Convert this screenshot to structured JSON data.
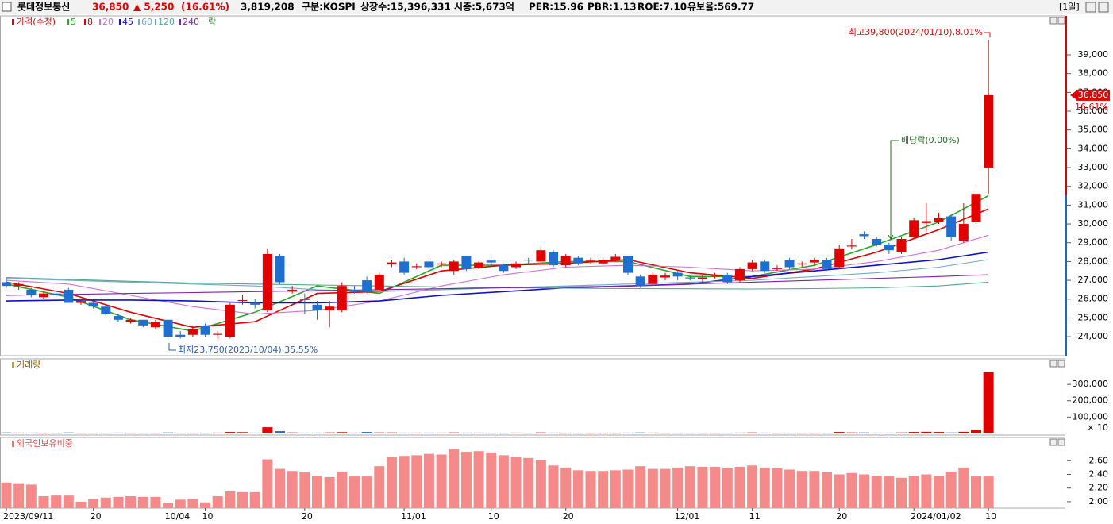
{
  "header": {
    "name": "롯데정보통신",
    "price": "36,850",
    "change": "▲ 5,250",
    "rate": "(16.61%)",
    "volume": "3,819,208",
    "market": "구분:KOSPI",
    "shares": "상장수:15,396,331",
    "cap": "시총:5,673억",
    "per": "PER:15.96",
    "pbr": "PBR:1.13",
    "roe": "ROE:7.10",
    "reserve": "유보율:569.77",
    "period": "[1일]"
  },
  "chart_data": [
    {
      "type": "candlestick",
      "legend_title": "가격(수정)",
      "legend_extra": "락",
      "up_color": "#e00000",
      "down_color": "#1e6fd0",
      "price_label": "36,850",
      "change_label": "16.61%",
      "annotations": {
        "high": "최고39,800(2024/01/10),8.01%",
        "low": "최저23,750(2023/10/04),35.55%",
        "ex_dividend": "배당락(0.00%)"
      },
      "ylim": [
        22990,
        41070
      ],
      "yticks": [
        {
          "value": 24000,
          "label": "24,000"
        },
        {
          "value": 25000,
          "label": "25,000"
        },
        {
          "value": 26000,
          "label": "26,000"
        },
        {
          "value": 27000,
          "label": "27,000"
        },
        {
          "value": 28000,
          "label": "28,000"
        },
        {
          "value": 29000,
          "label": "29,000"
        },
        {
          "value": 30000,
          "label": "30,000"
        },
        {
          "value": 31000,
          "label": "31,000"
        },
        {
          "value": 32000,
          "label": "32,000"
        },
        {
          "value": 33000,
          "label": "33,000"
        },
        {
          "value": 34000,
          "label": "34,000"
        },
        {
          "value": 35000,
          "label": "35,000"
        },
        {
          "value": 36000,
          "label": "36,000"
        },
        {
          "value": 37000,
          "label": "37,000"
        },
        {
          "value": 38000,
          "label": "38,000"
        },
        {
          "value": 39000,
          "label": "39,000"
        }
      ],
      "open": [
        26900,
        26700,
        26500,
        26100,
        26300,
        26500,
        25800,
        25800,
        25600,
        25100,
        24800,
        24900,
        24500,
        24900,
        24100,
        24100,
        24600,
        24100,
        24000,
        25900,
        25800,
        25400,
        28300,
        26400,
        26000,
        25700,
        25400,
        25400,
        26500,
        27000,
        26500,
        27850,
        28000,
        27700,
        28000,
        27850,
        27500,
        28300,
        27700,
        28050,
        27800,
        27700,
        28100,
        28000,
        28500,
        27800,
        28200,
        28000,
        27900,
        28100,
        28300,
        27200,
        26800,
        27150,
        27400,
        27150,
        27050,
        27200,
        27300,
        27000,
        27600,
        28000,
        27600,
        28100,
        27850,
        27950,
        28100,
        27700,
        28800,
        29450,
        29200,
        28900,
        28500,
        29300,
        30050,
        30100,
        30400,
        29100,
        30100,
        33000
      ],
      "close": [
        26700,
        26800,
        26200,
        26300,
        26200,
        25800,
        25900,
        25600,
        25200,
        24900,
        24900,
        24600,
        24800,
        24000,
        24000,
        24400,
        24100,
        24150,
        25700,
        25950,
        25700,
        28400,
        26900,
        26500,
        25950,
        25400,
        25600,
        26700,
        26400,
        26400,
        27300,
        27950,
        27400,
        27750,
        27700,
        27900,
        28000,
        27600,
        27950,
        27950,
        27500,
        27900,
        28050,
        28600,
        27800,
        28300,
        27900,
        28050,
        28100,
        28250,
        27400,
        26700,
        27300,
        27250,
        27200,
        27100,
        27150,
        27250,
        26900,
        27600,
        27950,
        27500,
        27650,
        27700,
        27900,
        28100,
        27600,
        28700,
        28850,
        29350,
        28900,
        28600,
        29200,
        30200,
        30150,
        30300,
        29300,
        30000,
        31600,
        36850
      ],
      "high": [
        27100,
        26900,
        26600,
        26400,
        26500,
        26600,
        26000,
        25900,
        25700,
        25200,
        25000,
        24900,
        24900,
        24900,
        24300,
        24600,
        24700,
        24300,
        25800,
        26200,
        26000,
        28700,
        28400,
        26700,
        26300,
        25900,
        25900,
        26900,
        26700,
        27200,
        27400,
        28100,
        28200,
        27900,
        28100,
        28000,
        28100,
        28300,
        28000,
        28100,
        27900,
        28000,
        28200,
        28800,
        28600,
        28400,
        28300,
        28200,
        28200,
        28400,
        28300,
        27300,
        27400,
        27400,
        27500,
        27300,
        27300,
        27400,
        27400,
        27700,
        28100,
        28100,
        27800,
        28200,
        28000,
        28200,
        28200,
        28900,
        29200,
        29600,
        29300,
        29000,
        29300,
        30300,
        31100,
        30600,
        30500,
        31100,
        32100,
        39800
      ],
      "low": [
        26600,
        26500,
        26100,
        26000,
        26100,
        25800,
        25700,
        25500,
        25100,
        24800,
        24700,
        24500,
        24400,
        23750,
        23900,
        24000,
        24000,
        23900,
        23900,
        25700,
        25500,
        25300,
        26800,
        26300,
        25200,
        24900,
        24500,
        25300,
        26300,
        26300,
        26400,
        27700,
        27300,
        27600,
        27600,
        27700,
        27300,
        27500,
        27600,
        27800,
        27400,
        27600,
        27900,
        27900,
        27700,
        27700,
        27800,
        27900,
        27800,
        28000,
        27300,
        26600,
        26700,
        27000,
        27000,
        27000,
        26900,
        27100,
        26800,
        26900,
        27500,
        27400,
        27500,
        27600,
        27700,
        27800,
        27500,
        27600,
        28700,
        29200,
        28800,
        28400,
        28400,
        29200,
        29600,
        30000,
        29100,
        29000,
        30000,
        31600
      ],
      "lines": [
        {
          "name": "5",
          "color": "#28a828",
          "x": [
            0,
            5,
            10,
            15,
            20,
            25,
            30,
            35,
            40,
            45,
            50,
            55,
            60,
            65,
            70,
            75,
            79
          ],
          "values": [
            26800,
            26100,
            24900,
            24300,
            25300,
            26700,
            26300,
            27800,
            27800,
            28000,
            28000,
            27200,
            27200,
            27800,
            28900,
            30100,
            31500
          ]
        },
        {
          "name": "8",
          "color": "#e00000",
          "x": [
            0,
            5,
            10,
            15,
            20,
            25,
            30,
            35,
            40,
            45,
            50,
            55,
            60,
            65,
            70,
            75,
            79
          ],
          "values": [
            26900,
            26300,
            25300,
            24500,
            24800,
            26300,
            26400,
            27500,
            27800,
            27900,
            28100,
            27400,
            27100,
            27600,
            28500,
            29700,
            30800
          ]
        },
        {
          "name": "20",
          "color": "#d070d8",
          "x": [
            0,
            5,
            10,
            15,
            20,
            25,
            30,
            35,
            40,
            45,
            50,
            55,
            60,
            65,
            70,
            75,
            79
          ],
          "values": [
            27000,
            26800,
            26200,
            25600,
            25200,
            25400,
            25900,
            26700,
            27300,
            27700,
            27800,
            27700,
            27500,
            27600,
            28000,
            28600,
            29400
          ]
        },
        {
          "name": "45",
          "color": "#1010c8",
          "x": [
            0,
            5,
            10,
            15,
            20,
            25,
            30,
            35,
            40,
            45,
            50,
            55,
            60,
            65,
            70,
            75,
            79
          ],
          "values": [
            25900,
            25950,
            25950,
            25900,
            25800,
            25800,
            25900,
            26200,
            26400,
            26600,
            26700,
            26800,
            27200,
            27500,
            27800,
            28100,
            28500
          ]
        },
        {
          "name": "60",
          "color": "#70a8c8",
          "x": [
            0,
            5,
            10,
            15,
            20,
            25,
            30,
            35,
            40,
            45,
            50,
            55,
            60,
            65,
            70,
            75,
            79
          ],
          "values": [
            27100,
            27000,
            26900,
            26800,
            26700,
            26500,
            26400,
            26500,
            26600,
            26700,
            26800,
            26900,
            27000,
            27200,
            27400,
            27700,
            28100
          ]
        },
        {
          "name": "120",
          "color": "#50a890",
          "x": [
            0,
            5,
            10,
            15,
            20,
            25,
            30,
            35,
            40,
            45,
            50,
            55,
            60,
            65,
            70,
            75,
            79
          ],
          "values": [
            27150,
            27050,
            26950,
            26850,
            26800,
            26750,
            26700,
            26650,
            26600,
            26580,
            26560,
            26550,
            26540,
            26560,
            26600,
            26700,
            26900
          ]
        },
        {
          "name": "240",
          "color": "#8020b0",
          "x": [
            0,
            5,
            10,
            15,
            20,
            25,
            30,
            35,
            40,
            45,
            50,
            55,
            60,
            65,
            70,
            75,
            79
          ],
          "values": [
            26200,
            26250,
            26300,
            26350,
            26400,
            26450,
            26500,
            26550,
            26600,
            26650,
            26700,
            26800,
            26900,
            27000,
            27100,
            27200,
            27300
          ]
        }
      ]
    },
    {
      "type": "bar",
      "legend_title": "거래량",
      "unit_label": "× 10",
      "ylim": [
        -10000,
        456000
      ],
      "yticks": [
        {
          "value": 100000,
          "label": "100,000"
        },
        {
          "value": 200000,
          "label": "200,000"
        },
        {
          "value": 300000,
          "label": "300,000"
        }
      ],
      "values": [
        6000,
        5000,
        5000,
        4000,
        4000,
        6000,
        4000,
        4000,
        4000,
        5000,
        4000,
        4000,
        4000,
        6000,
        4000,
        4000,
        4000,
        5000,
        9000,
        8000,
        5000,
        38000,
        14000,
        6000,
        5000,
        5000,
        6000,
        8000,
        5000,
        9000,
        6000,
        6000,
        5000,
        5000,
        5000,
        5000,
        6000,
        5000,
        5000,
        4000,
        4000,
        5000,
        4000,
        6000,
        5000,
        4000,
        4000,
        4000,
        4000,
        4000,
        5000,
        6000,
        5000,
        4000,
        4000,
        4000,
        4000,
        4000,
        4000,
        5000,
        6000,
        5000,
        4000,
        4000,
        4000,
        4000,
        4000,
        9000,
        6000,
        6000,
        5000,
        5000,
        6000,
        9000,
        10000,
        9000,
        6000,
        10000,
        22000,
        375000
      ]
    },
    {
      "type": "bar",
      "legend_title": "외국인보유비중",
      "color": "#f58a8a",
      "ylim": [
        1.906,
        2.94
      ],
      "yticks": [
        {
          "value": 2,
          "label": "2.00"
        },
        {
          "value": 2.2,
          "label": "2.20"
        },
        {
          "value": 2.4,
          "label": "2.40"
        },
        {
          "value": 2.6,
          "label": "2.60"
        }
      ],
      "categories": [
        "2023/09/11",
        null,
        null,
        null,
        null,
        null,
        null,
        "20",
        null,
        null,
        null,
        null,
        null,
        "10/04",
        null,
        null,
        "10",
        null,
        null,
        null,
        null,
        null,
        null,
        null,
        "20",
        null,
        null,
        null,
        null,
        null,
        null,
        null,
        "11/01",
        null,
        null,
        null,
        null,
        null,
        null,
        "10",
        null,
        null,
        null,
        null,
        null,
        "20",
        null,
        null,
        null,
        null,
        null,
        null,
        null,
        null,
        "12/01",
        null,
        null,
        null,
        null,
        null,
        "11",
        null,
        null,
        null,
        null,
        null,
        null,
        "20",
        null,
        null,
        null,
        null,
        null,
        "2024/01/02",
        null,
        null,
        null,
        null,
        null,
        "10"
      ],
      "values": [
        2.28,
        2.27,
        2.25,
        2.08,
        2.09,
        2.09,
        2.0,
        2.04,
        2.06,
        2.07,
        2.08,
        2.07,
        2.07,
        1.98,
        2.03,
        2.04,
        1.99,
        2.08,
        2.15,
        2.14,
        2.14,
        2.62,
        2.48,
        2.45,
        2.43,
        2.38,
        2.36,
        2.44,
        2.37,
        2.37,
        2.52,
        2.65,
        2.67,
        2.68,
        2.7,
        2.69,
        2.77,
        2.73,
        2.74,
        2.72,
        2.68,
        2.65,
        2.64,
        2.61,
        2.53,
        2.5,
        2.46,
        2.45,
        2.45,
        2.46,
        2.47,
        2.52,
        2.48,
        2.48,
        2.5,
        2.52,
        2.51,
        2.51,
        2.5,
        2.51,
        2.53,
        2.5,
        2.49,
        2.47,
        2.45,
        2.45,
        2.43,
        2.4,
        2.42,
        2.4,
        2.38,
        2.37,
        2.35,
        2.38,
        2.4,
        2.38,
        2.44,
        2.5,
        2.37,
        2.37
      ]
    }
  ]
}
